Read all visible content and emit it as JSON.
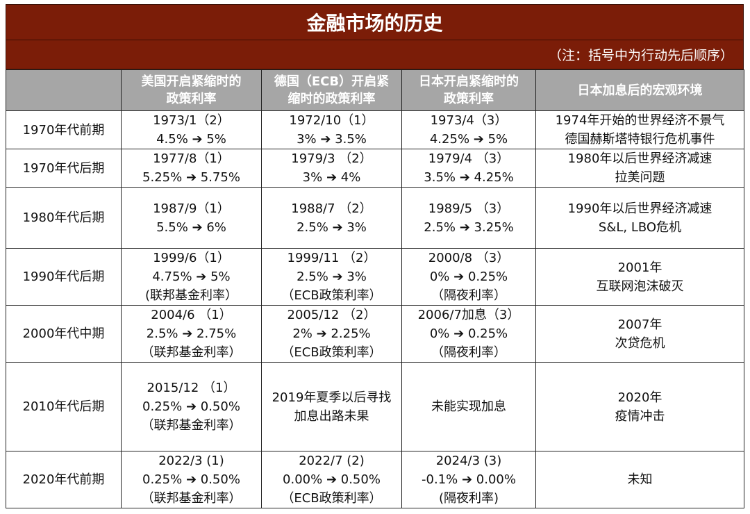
{
  "title": "金融市场的历史",
  "note": "（注：括号中为行动先后顺序）",
  "headers": [
    {
      "lines": [
        ""
      ]
    },
    {
      "lines": [
        "美国开启紧缩时的",
        "政策利率"
      ]
    },
    {
      "lines": [
        "德国（ECB）开启紧",
        "缩时的政策利率"
      ]
    },
    {
      "lines": [
        "日本开启紧缩时的",
        "政策利率"
      ]
    },
    {
      "lines": [
        "日本加息后的宏观环境"
      ]
    }
  ],
  "rows": [
    {
      "period": "1970年代前期",
      "us": [
        "1973/1（2）",
        "4.5% ➔ 5%"
      ],
      "de": [
        "1972/10（1）",
        "3% ➔ 3.5%"
      ],
      "jp": [
        "1973/4（3）",
        "4.25% ➔ 5%"
      ],
      "env": [
        "1974年开始的世界经济不景气",
        "德国赫斯塔特银行危机事件"
      ]
    },
    {
      "period": "1970年代后期",
      "us": [
        "1977/8（1）",
        "5.25% ➔ 5.75%"
      ],
      "de": [
        "1979/3 （2）",
        "3% ➔ 4%"
      ],
      "jp": [
        "1979/4 （3）",
        "3.5% ➔ 4.25%"
      ],
      "env": [
        "1980年以后世界经济减速",
        "拉美问题"
      ]
    },
    {
      "period": "1980年代后期",
      "us": [
        "1987/9（1）",
        "5.5% ➔ 6%"
      ],
      "de": [
        "1988/7 （2）",
        "2.5% ➔ 3%"
      ],
      "jp": [
        "1989/5 （3）",
        "2.5% ➔ 3.25%"
      ],
      "env": [
        "1990年以后世界经济减速",
        "S&L, LBO危机"
      ]
    },
    {
      "period": "1990年代后期",
      "us": [
        "1999/6（1）",
        "4.75% ➔ 5%",
        "(联邦基金利率）"
      ],
      "de": [
        "1999/11 （2）",
        "2.5% ➔ 3%",
        "（ECB政策利率）"
      ],
      "jp": [
        "2000/8 （3）",
        "0% ➔ 0.25%",
        "（隔夜利率）"
      ],
      "env": [
        "2001年",
        "互联网泡沫破灭"
      ]
    },
    {
      "period": "2000年代中期",
      "us": [
        "2004/6 （1）",
        "2.5% ➔ 2.75%",
        "（联邦基金利率）"
      ],
      "de": [
        "2005/12 （2）",
        "2% ➔ 2.25%",
        "（ECB政策利率）"
      ],
      "jp": [
        "2006/7加息（3）",
        "0% ➔ 0.25%",
        "（隔夜利率）"
      ],
      "env": [
        "2007年",
        "次贷危机"
      ]
    },
    {
      "period": "2010年代后期",
      "us": [
        "2015/12 （1）",
        "0.25% ➔ 0.50%",
        "（联邦基金利率）"
      ],
      "de": [
        "2019年夏季以后寻找",
        "加息出路未果"
      ],
      "jp": [
        "未能实现加息"
      ],
      "env": [
        "2020年",
        "疫情冲击"
      ]
    },
    {
      "period": "2020年代前期",
      "us": [
        "2022/3 (1)",
        "0.25% ➔ 0.50%",
        "（联邦基金利率）"
      ],
      "de": [
        "2022/7 (2)",
        "0.00% ➔ 0.50%",
        "（ECB政策利率）"
      ],
      "jp": [
        "2024/3 (3)",
        "-0.1% ➔ 0.00%",
        "(隔夜利率)"
      ],
      "env": [
        "未知"
      ]
    }
  ]
}
